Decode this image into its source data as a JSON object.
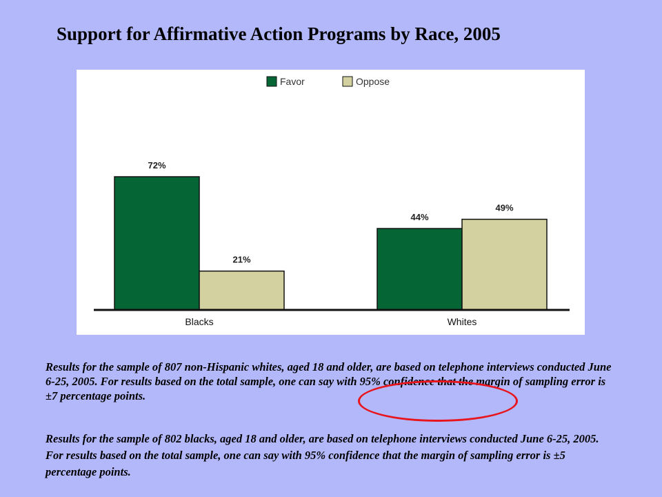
{
  "title": "Support for Affirmative Action Programs by Race, 2005",
  "chart_data": {
    "type": "bar",
    "categories": [
      "Blacks",
      "Whites"
    ],
    "series": [
      {
        "name": "Favor",
        "values": [
          72,
          44
        ],
        "labels": [
          "72%",
          "44%"
        ],
        "color": "#066535"
      },
      {
        "name": "Oppose",
        "values": [
          21,
          49
        ],
        "labels": [
          "21%",
          "49%"
        ],
        "color": "#d3d1a0"
      }
    ],
    "ylim": [
      0,
      100
    ],
    "grid": false,
    "legend": "top-center"
  },
  "notes": [
    "Results for the sample of 807 non-Hispanic whites, aged 18 and older, are based on telephone interviews conducted June 6-25, 2005. For results based on the total sample, one can say with 95% confidence that the margin of sampling error is ±7 percentage points.",
    "Results for the sample of 802 blacks, aged 18 and older, are based on telephone interviews conducted June 6-25, 2005. For results based on the total sample, one can say with 95% confidence that the margin of sampling error is ±5 percentage points."
  ],
  "colors": {
    "background": "#b3b8fb",
    "annotation_circle": "#e8151d"
  }
}
